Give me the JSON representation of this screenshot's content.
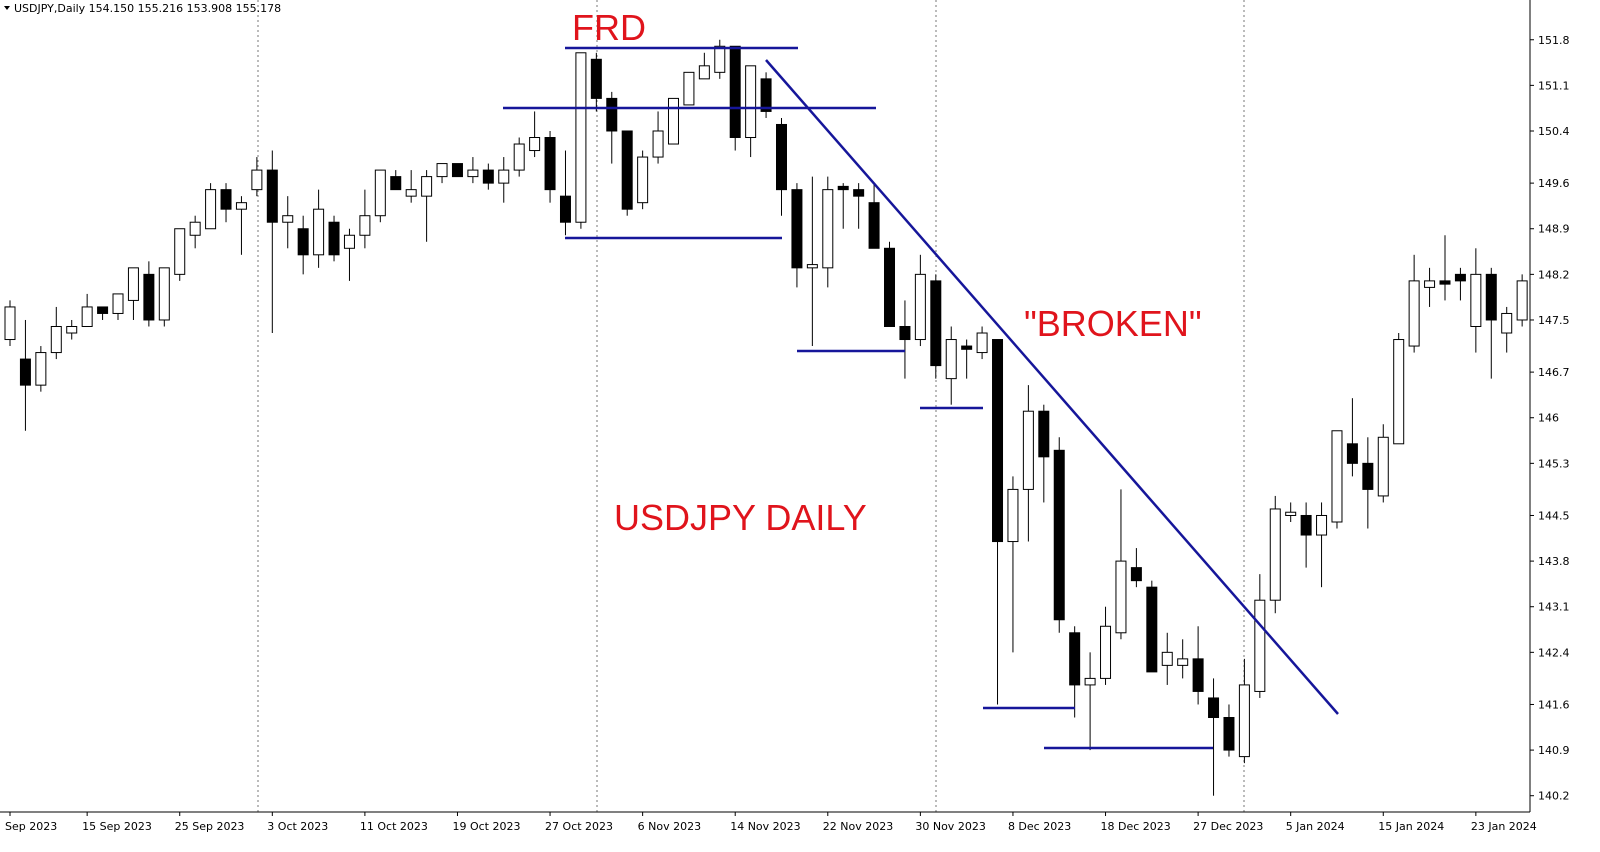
{
  "chart_data": {
    "type": "candlestick",
    "header": "USDJPY,Daily 154.150 155.216 153.908 155.178",
    "annotations": [
      "FRD",
      "\"BROKEN\"",
      "USDJPY DAILY"
    ],
    "up_color": "#ffffff",
    "down_color": "#000000",
    "categories": [
      "Sep 2023",
      null,
      null,
      null,
      null,
      "15 Sep 2023",
      null,
      null,
      null,
      null,
      null,
      "25 Sep 2023",
      null,
      null,
      null,
      null,
      null,
      "3 Oct 2023",
      null,
      null,
      null,
      null,
      null,
      "11 Oct 2023",
      null,
      null,
      null,
      null,
      null,
      "19 Oct 2023",
      null,
      null,
      null,
      null,
      null,
      "27 Oct 2023",
      null,
      null,
      null,
      null,
      null,
      "6 Nov 2023",
      null,
      null,
      null,
      null,
      null,
      "14 Nov 2023",
      null,
      null,
      null,
      null,
      null,
      "22 Nov 2023",
      null,
      null,
      null,
      null,
      null,
      "30 Nov 2023",
      null,
      null,
      null,
      null,
      null,
      "8 Dec 2023",
      null,
      null,
      null,
      null,
      null,
      "18 Dec 2023",
      null,
      null,
      null,
      null,
      null,
      "27 Dec 2023",
      null,
      null,
      null,
      null,
      null,
      "5 Jan 2024",
      null,
      null,
      null,
      null,
      null,
      "15 Jan 2024",
      null,
      null,
      null,
      null,
      null,
      "23 Jan 2024",
      null,
      null,
      null
    ],
    "open": [
      147.2,
      146.9,
      146.5,
      147.0,
      147.3,
      147.4,
      147.7,
      147.6,
      147.8,
      148.2,
      147.5,
      148.2,
      148.8,
      148.9,
      149.5,
      149.2,
      149.5,
      149.8,
      149.0,
      148.9,
      148.5,
      149.0,
      148.6,
      148.8,
      149.1,
      149.7,
      149.4,
      149.4,
      149.7,
      149.9,
      149.7,
      149.8,
      149.6,
      149.8,
      150.1,
      150.3,
      149.4,
      149.0,
      151.5,
      150.9,
      150.4,
      149.3,
      150.0,
      150.2,
      150.8,
      151.2,
      151.3,
      151.7,
      150.3,
      151.2,
      150.5,
      149.5,
      148.3,
      148.3,
      149.55,
      149.5,
      149.3,
      148.6,
      147.4,
      147.2,
      148.1,
      146.6,
      147.1,
      147.0,
      147.2,
      144.1,
      144.9,
      146.1,
      145.5,
      142.7,
      141.9,
      142.0,
      142.7,
      143.7,
      143.4,
      142.2,
      142.2,
      142.3,
      141.7,
      141.4,
      140.8,
      141.8,
      143.2,
      144.5,
      144.5,
      144.2,
      144.4,
      145.6,
      145.3,
      144.8,
      145.6,
      147.1,
      148.0,
      148.1,
      148.2,
      147.4,
      148.2,
      147.3,
      147.5
    ],
    "high": [
      147.8,
      147.5,
      147.1,
      147.7,
      147.5,
      147.9,
      147.7,
      147.9,
      148.3,
      148.4,
      148.3,
      148.9,
      149.1,
      149.6,
      149.6,
      149.4,
      150.0,
      150.1,
      149.4,
      149.1,
      149.5,
      149.1,
      148.9,
      149.5,
      149.8,
      149.8,
      149.8,
      149.8,
      149.9,
      149.9,
      150.0,
      149.9,
      150.0,
      150.3,
      150.7,
      150.4,
      150.1,
      151.6,
      151.6,
      151.0,
      150.4,
      150.1,
      150.7,
      150.9,
      151.3,
      151.6,
      151.8,
      151.7,
      151.4,
      151.3,
      150.6,
      149.6,
      149.7,
      149.7,
      149.6,
      149.6,
      149.6,
      148.7,
      147.8,
      148.5,
      148.2,
      147.4,
      147.2,
      147.4,
      147.2,
      145.1,
      146.5,
      146.2,
      145.7,
      142.8,
      142.4,
      143.1,
      144.9,
      144.0,
      143.5,
      142.7,
      142.6,
      142.8,
      142.0,
      141.6,
      142.3,
      143.6,
      144.8,
      144.7,
      144.7,
      144.7,
      145.8,
      146.3,
      145.7,
      145.9,
      147.3,
      148.5,
      148.3,
      148.8,
      148.3,
      148.6,
      148.3,
      147.7,
      148.2
    ],
    "low": [
      147.1,
      145.8,
      146.4,
      146.9,
      147.2,
      147.4,
      147.5,
      147.5,
      147.5,
      147.4,
      147.4,
      148.1,
      148.6,
      148.9,
      149.0,
      148.5,
      149.4,
      147.3,
      148.6,
      148.2,
      148.3,
      148.4,
      148.1,
      148.6,
      149.0,
      149.5,
      149.3,
      148.7,
      149.6,
      149.7,
      149.6,
      149.5,
      149.3,
      149.7,
      150.0,
      149.3,
      148.8,
      148.9,
      150.7,
      149.9,
      149.1,
      149.2,
      149.9,
      150.2,
      150.8,
      151.2,
      151.2,
      150.1,
      150.0,
      150.6,
      149.1,
      148.0,
      147.1,
      148.0,
      148.9,
      148.9,
      148.6,
      147.4,
      146.6,
      147.1,
      146.6,
      146.2,
      146.6,
      146.9,
      141.6,
      142.4,
      144.1,
      144.7,
      142.7,
      141.4,
      140.9,
      141.9,
      142.6,
      143.4,
      142.1,
      141.9,
      142.0,
      141.6,
      140.2,
      140.8,
      140.7,
      141.7,
      143.0,
      144.4,
      143.7,
      143.4,
      144.3,
      145.1,
      144.3,
      144.7,
      145.6,
      147.0,
      147.7,
      147.8,
      147.8,
      147.0,
      146.6,
      147.0,
      147.4
    ],
    "close": [
      147.7,
      146.5,
      147.0,
      147.4,
      147.4,
      147.7,
      147.6,
      147.9,
      148.3,
      147.5,
      148.3,
      148.9,
      149.0,
      149.5,
      149.2,
      149.3,
      149.8,
      149.0,
      149.1,
      148.5,
      149.2,
      148.5,
      148.8,
      149.1,
      149.8,
      149.5,
      149.5,
      149.7,
      149.9,
      149.7,
      149.8,
      149.6,
      149.8,
      150.2,
      150.3,
      149.5,
      149.0,
      151.6,
      150.9,
      150.4,
      149.2,
      150.0,
      150.4,
      150.9,
      151.3,
      151.4,
      151.7,
      150.3,
      151.4,
      150.7,
      149.5,
      148.3,
      148.35,
      149.5,
      149.5,
      149.4,
      148.6,
      147.4,
      147.2,
      148.2,
      146.8,
      147.2,
      147.05,
      147.3,
      144.1,
      144.9,
      146.1,
      145.4,
      142.9,
      141.9,
      142.0,
      142.8,
      143.8,
      143.5,
      142.1,
      142.4,
      142.3,
      141.8,
      141.4,
      140.9,
      141.9,
      143.2,
      144.6,
      144.55,
      144.2,
      144.5,
      145.8,
      145.3,
      144.9,
      145.7,
      147.2,
      148.1,
      148.1,
      148.05,
      148.1,
      148.2,
      147.5,
      147.6,
      148.1
    ],
    "ylim": [
      139.95,
      152.41
    ],
    "yticks": [
      151.8,
      151.1,
      150.4,
      149.6,
      148.9,
      148.2,
      147.5,
      146.7,
      146.0,
      145.3,
      144.5,
      143.8,
      143.1,
      142.4,
      141.6,
      140.9,
      140.2
    ]
  }
}
